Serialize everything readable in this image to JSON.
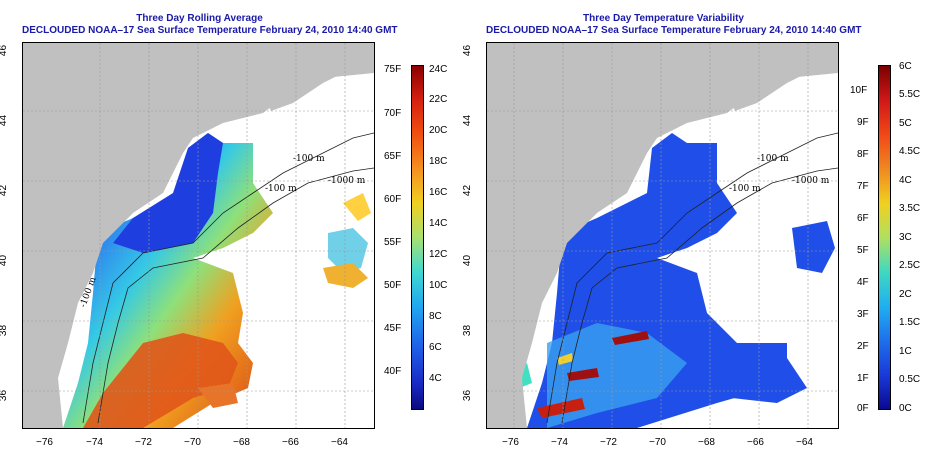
{
  "panels": [
    {
      "title_line1": "Three Day Rolling Average",
      "title_line2": "DECLOUDED NOAA–17 Sea Surface Temperature February 24, 2010 14:40 GMT",
      "colorbar_left": [
        "75F",
        "70F",
        "65F",
        "60F",
        "55F",
        "50F",
        "45F",
        "40F"
      ],
      "colorbar_right": [
        "24C",
        "22C",
        "20C",
        "18C",
        "16C",
        "14C",
        "12C",
        "10C",
        "8C",
        "6C",
        "4C"
      ],
      "contour_labels": [
        "-100 m",
        "-100 m",
        "-1000 m",
        "-100 m"
      ]
    },
    {
      "title_line1": "Three Day Temperature Variability",
      "title_line2": "DECLOUDED NOAA–17 Sea Surface Temperature February 24, 2010 14:40 GMT",
      "colorbar_left": [
        "10F",
        "9F",
        "8F",
        "7F",
        "6F",
        "5F",
        "4F",
        "3F",
        "2F",
        "1F",
        "0F"
      ],
      "colorbar_right": [
        "6C",
        "5.5C",
        "5C",
        "4.5C",
        "4C",
        "3.5C",
        "3C",
        "2.5C",
        "2C",
        "1.5C",
        "1C",
        "0.5C",
        "0C"
      ],
      "contour_labels": [
        "-100 m",
        "-100 m",
        "-1000 m"
      ]
    }
  ],
  "axes": {
    "x_ticks": [
      "−76",
      "−74",
      "−72",
      "−70",
      "−68",
      "−66",
      "−64"
    ],
    "y_ticks": [
      "46",
      "44",
      "42",
      "40",
      "38",
      "36"
    ]
  },
  "colors": {
    "land": "#c0c0c0",
    "title": "#1a1aa8"
  }
}
